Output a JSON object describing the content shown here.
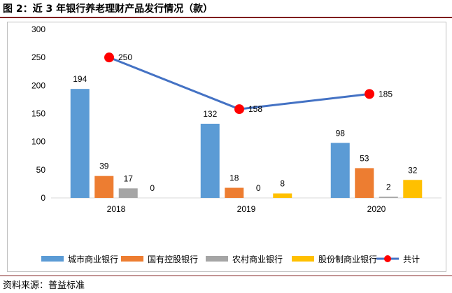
{
  "title": "图 2：近 3 年银行养老理财产品发行情况（款）",
  "source": "资料来源：普益标准",
  "colors": {
    "series": [
      "#5b9bd5",
      "#ed7d31",
      "#a5a5a5",
      "#ffc000"
    ],
    "line": "#4472c4",
    "marker": "#ff0000",
    "axis": "#d9d9d9"
  },
  "chart_data": {
    "type": "bar",
    "categories": [
      "2018",
      "2019",
      "2020"
    ],
    "series": [
      {
        "name": "城市商业银行",
        "values": [
          194,
          132,
          98
        ]
      },
      {
        "name": "国有控股银行",
        "values": [
          39,
          18,
          53
        ]
      },
      {
        "name": "农村商业银行",
        "values": [
          17,
          0,
          2
        ]
      },
      {
        "name": "股份制商业银行",
        "values": [
          0,
          8,
          32
        ]
      }
    ],
    "line_series": {
      "name": "共计",
      "values": [
        250,
        158,
        185
      ]
    },
    "ylim": [
      0,
      300
    ],
    "yticks": [
      0,
      50,
      100,
      150,
      200,
      250,
      300
    ],
    "legend_position": "bottom",
    "grid": false
  }
}
